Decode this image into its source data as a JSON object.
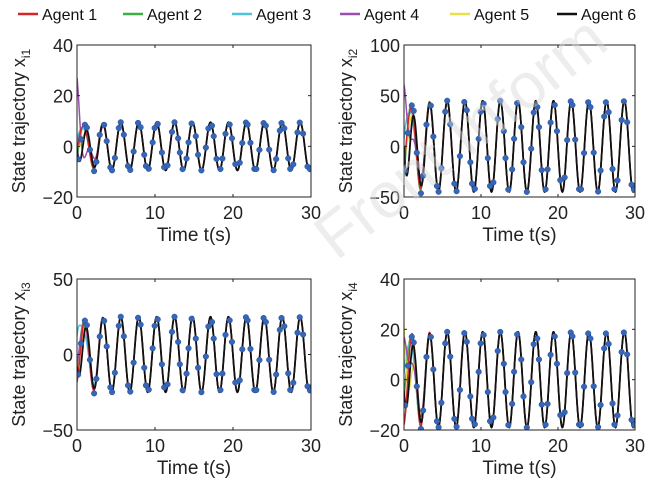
{
  "legend": {
    "position": "top",
    "entries": [
      {
        "label": "Agent 1",
        "color": "#d62728"
      },
      {
        "label": "Agent 2",
        "color": "#3cb043"
      },
      {
        "label": "Agent 3",
        "color": "#4fc3dd"
      },
      {
        "label": "Agent 4",
        "color": "#9b4fb0"
      },
      {
        "label": "Agent 5",
        "color": "#e8e04a"
      },
      {
        "label": "Agent 6",
        "color": "#111111"
      }
    ]
  },
  "marker_color": "#3566b8",
  "watermark": "Front Inform",
  "chart_data": [
    {
      "type": "line",
      "ylabel": "State trajectory x",
      "ylabel_sub": "i1",
      "xlabel": "Time t(s)",
      "xlim": [
        0,
        30
      ],
      "ylim": [
        -20,
        40
      ],
      "xticks": [
        "0",
        "10",
        "20",
        "30"
      ],
      "yticks": [
        "-20",
        "0",
        "20",
        "40"
      ],
      "grid": false,
      "steady": {
        "amplitude": 9.5,
        "period": 2.3,
        "offset": 0
      },
      "transient_start": [
        6,
        2,
        5,
        25,
        -3,
        0
      ]
    },
    {
      "type": "line",
      "ylabel": "State trajectory x",
      "ylabel_sub": "i2",
      "xlabel": "Time t(s)",
      "xlim": [
        0,
        30
      ],
      "ylim": [
        -50,
        100
      ],
      "xticks": [
        "0",
        "10",
        "20",
        "30"
      ],
      "yticks": [
        "-50",
        "0",
        "50",
        "100"
      ],
      "grid": false,
      "steady": {
        "amplitude": 45,
        "period": 2.3,
        "offset": 0
      },
      "transient_start": [
        10,
        0,
        20,
        50,
        -30,
        5
      ]
    },
    {
      "type": "line",
      "ylabel": "State trajectory x",
      "ylabel_sub": "i3",
      "xlabel": "Time t(s)",
      "xlim": [
        0,
        30
      ],
      "ylim": [
        -50,
        50
      ],
      "xticks": [
        "0",
        "10",
        "20",
        "30"
      ],
      "yticks": [
        "-50",
        "0",
        "50"
      ],
      "grid": false,
      "steady": {
        "amplitude": 25,
        "period": 2.3,
        "offset": 0
      },
      "transient_start": [
        -5,
        5,
        20,
        -15,
        -20,
        -10
      ]
    },
    {
      "type": "line",
      "ylabel": "State trajectory x",
      "ylabel_sub": "i4",
      "xlabel": "Time t(s)",
      "xlim": [
        0,
        30
      ],
      "ylim": [
        -20,
        40
      ],
      "xticks": [
        "0",
        "10",
        "20",
        "30"
      ],
      "yticks": [
        "-20",
        "0",
        "20",
        "40"
      ],
      "grid": false,
      "steady": {
        "amplitude": 19,
        "period": 2.3,
        "offset": 0
      },
      "transient_start": [
        -10,
        5,
        8,
        12,
        15,
        -5
      ]
    }
  ]
}
